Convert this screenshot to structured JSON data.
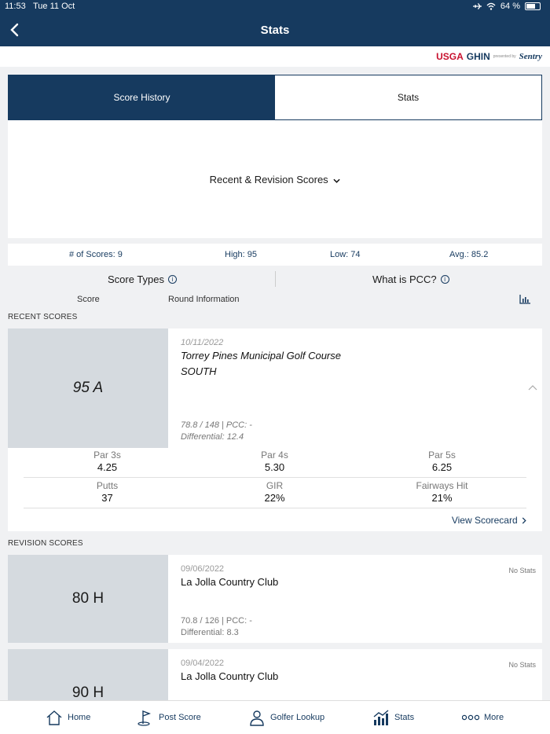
{
  "status": {
    "time": "11:53",
    "date": "Tue 11 Oct",
    "battery": "64 %"
  },
  "nav": {
    "title": "Stats"
  },
  "logo": {
    "usga": "USGA",
    "ghin": "GHIN",
    "presented": "presented by",
    "sponsor": "Sentry"
  },
  "tabs": [
    {
      "label": "Score History",
      "active": true
    },
    {
      "label": "Stats",
      "active": false
    }
  ],
  "filter": {
    "label": "Recent & Revision Scores"
  },
  "summary": {
    "count": "# of Scores: 9",
    "high": "High: 95",
    "low": "Low: 74",
    "avg": "Avg.: 85.2"
  },
  "info": {
    "score_types": "Score Types",
    "pcc": "What is PCC?"
  },
  "columns": {
    "score": "Score",
    "round": "Round Information"
  },
  "recent_label": "RECENT SCORES",
  "revision_label": "REVISION SCORES",
  "recent_scores": [
    {
      "score": "95 A",
      "date": "10/11/2022",
      "course": "Torrey Pines Municipal Golf Course",
      "tee": "SOUTH",
      "rating": "78.8 / 148 | PCC: -",
      "differential": "Differential: 12.4",
      "stats": {
        "par3_label": "Par 3s",
        "par3": "4.25",
        "par4_label": "Par 4s",
        "par4": "5.30",
        "par5_label": "Par 5s",
        "par5": "6.25",
        "putts_label": "Putts",
        "putts": "37",
        "gir_label": "GIR",
        "gir": "22%",
        "fairways_label": "Fairways Hit",
        "fairways": "21%"
      },
      "view_scorecard": "View Scorecard"
    }
  ],
  "revision_scores": [
    {
      "score": "80 H",
      "date": "09/06/2022",
      "course": "La Jolla Country Club",
      "no_stats": "No Stats",
      "rating": "70.8 / 126 | PCC: -",
      "differential": "Differential: 8.3"
    },
    {
      "score": "90 H",
      "date": "09/04/2022",
      "course": "La Jolla Country Club",
      "no_stats": "No Stats"
    }
  ],
  "tabbar": [
    {
      "label": "Home",
      "icon": "home-icon"
    },
    {
      "label": "Post Score",
      "icon": "golf-flag-icon"
    },
    {
      "label": "Golfer Lookup",
      "icon": "person-icon"
    },
    {
      "label": "Stats",
      "icon": "bar-chart-icon"
    },
    {
      "label": "More",
      "icon": "more-dots-icon"
    }
  ],
  "colors": {
    "navy": "#163a5f",
    "score_box": "#d5dadf",
    "background": "#f0f1f3"
  }
}
